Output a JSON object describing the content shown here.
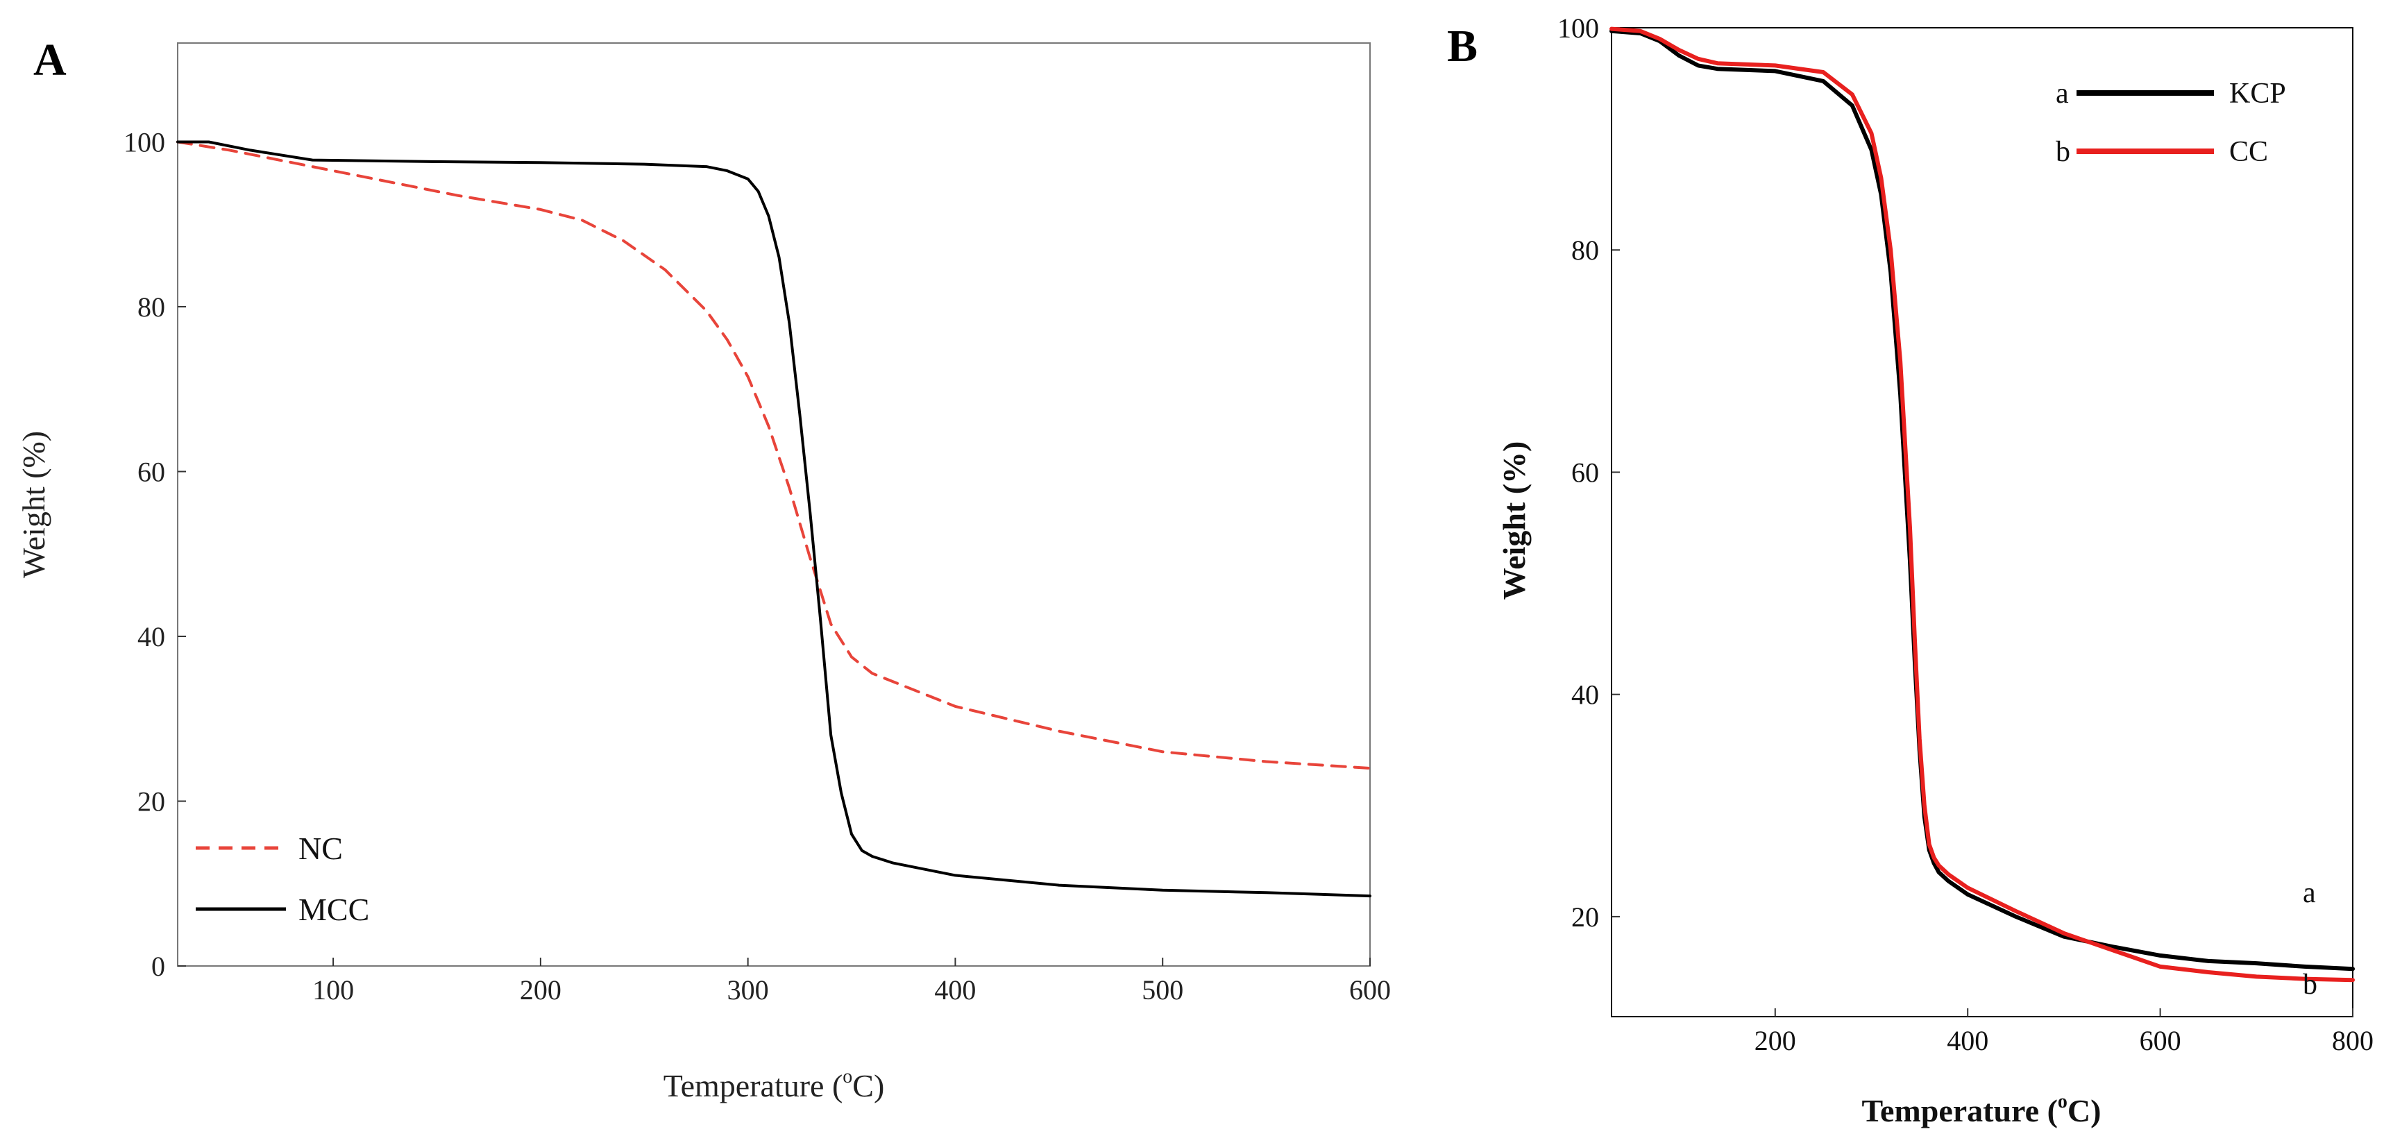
{
  "chart_data": [
    {
      "panel": "A",
      "type": "line",
      "title": "",
      "xlabel": "Temperature (",
      "xlabel_sup": "o",
      "xlabel_end": "C)",
      "ylabel": "Weight (%)",
      "xlim": [
        25,
        600
      ],
      "ylim": [
        0,
        112
      ],
      "xticks": [
        100,
        200,
        300,
        400,
        500,
        600
      ],
      "yticks": [
        0,
        20,
        40,
        60,
        80,
        100
      ],
      "legend": "bottom-left",
      "series": [
        {
          "name": "NC",
          "color": "#e8443a",
          "dash": true,
          "x": [
            25,
            50,
            80,
            120,
            160,
            200,
            220,
            240,
            260,
            280,
            290,
            300,
            310,
            320,
            330,
            340,
            350,
            360,
            400,
            450,
            500,
            550,
            600
          ],
          "y": [
            100,
            99,
            97.5,
            95.5,
            93.5,
            91.8,
            90.5,
            88,
            84.5,
            79.5,
            76,
            71.5,
            65.5,
            58,
            49.5,
            41.5,
            37.5,
            35.5,
            31.5,
            28.5,
            26,
            24.8,
            24
          ]
        },
        {
          "name": "MCC",
          "color": "#000000",
          "dash": false,
          "x": [
            25,
            40,
            60,
            90,
            150,
            200,
            250,
            280,
            290,
            300,
            305,
            310,
            315,
            320,
            325,
            330,
            335,
            340,
            345,
            350,
            355,
            360,
            370,
            400,
            450,
            500,
            550,
            600
          ],
          "y": [
            100,
            100,
            99,
            97.8,
            97.6,
            97.5,
            97.3,
            97,
            96.5,
            95.5,
            94,
            91,
            86,
            78,
            67,
            55,
            42,
            28,
            21,
            16,
            14,
            13.3,
            12.5,
            11,
            9.8,
            9.2,
            8.9,
            8.5
          ]
        }
      ]
    },
    {
      "panel": "B",
      "type": "line",
      "title": "",
      "xlabel": "Temperature (",
      "xlabel_sup": "o",
      "xlabel_end": "C)",
      "ylabel": "Weight (%)",
      "xlim": [
        30,
        800
      ],
      "ylim": [
        11,
        100
      ],
      "xticks": [
        200,
        400,
        600,
        800
      ],
      "yticks": [
        20,
        40,
        60,
        80,
        100
      ],
      "legend": "top-right",
      "end_labels": [
        "a",
        "b"
      ],
      "series": [
        {
          "name": "KCP",
          "letter": "a",
          "color": "#000000",
          "x": [
            30,
            60,
            80,
            100,
            120,
            140,
            200,
            250,
            280,
            300,
            310,
            320,
            330,
            340,
            345,
            350,
            355,
            360,
            365,
            370,
            380,
            400,
            450,
            500,
            550,
            600,
            650,
            700,
            750,
            800
          ],
          "y": [
            99.7,
            99.5,
            98.8,
            97.5,
            96.6,
            96.3,
            96.1,
            95.2,
            93,
            89,
            85,
            78,
            67,
            52,
            43,
            35,
            29,
            26,
            24.8,
            24,
            23.2,
            22,
            20,
            18.2,
            17.3,
            16.5,
            16,
            15.8,
            15.5,
            15.3
          ]
        },
        {
          "name": "CC",
          "letter": "b",
          "color": "#e8201e",
          "x": [
            30,
            60,
            80,
            100,
            120,
            140,
            200,
            250,
            280,
            300,
            310,
            320,
            330,
            340,
            345,
            350,
            355,
            360,
            365,
            370,
            380,
            400,
            450,
            500,
            550,
            600,
            650,
            700,
            750,
            800
          ],
          "y": [
            99.9,
            99.7,
            99,
            98,
            97.2,
            96.8,
            96.6,
            96,
            94,
            90.5,
            86.5,
            80,
            70,
            55,
            45,
            36,
            30,
            26.5,
            25.3,
            24.6,
            23.8,
            22.6,
            20.5,
            18.5,
            17,
            15.5,
            15,
            14.6,
            14.4,
            14.3
          ]
        }
      ]
    }
  ]
}
